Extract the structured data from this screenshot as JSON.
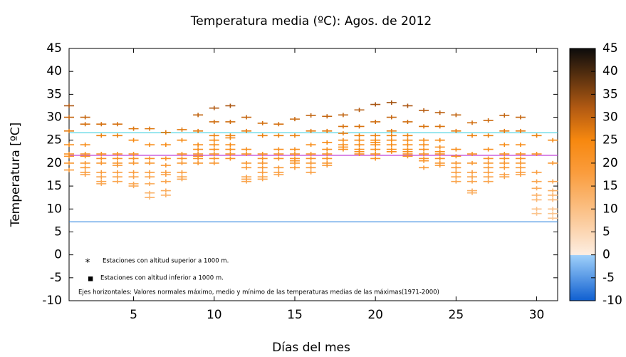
{
  "chart_data": {
    "type": "strip",
    "title": "Temperatura media (ºC): Agos. de 2012",
    "x_label": "Días del mes",
    "y_label": "Temperatura [ºC]",
    "xlim": [
      1,
      31.3
    ],
    "xticks": [
      5,
      10,
      15,
      20,
      25,
      30
    ],
    "ylim": [
      -10,
      45
    ],
    "yticks": [
      -10,
      -5,
      0,
      5,
      10,
      15,
      20,
      25,
      30,
      35,
      40,
      45
    ],
    "x": [
      1,
      2,
      3,
      4,
      5,
      6,
      7,
      8,
      9,
      10,
      11,
      12,
      13,
      14,
      15,
      16,
      17,
      18,
      19,
      20,
      21,
      22,
      23,
      24,
      25,
      26,
      27,
      28,
      29,
      30,
      31
    ],
    "values": [
      [
        32.5,
        30,
        27,
        24,
        22,
        21.5,
        20,
        18.5
      ],
      [
        30,
        28.5,
        24,
        22,
        21.5,
        20,
        19,
        18,
        17.5
      ],
      [
        28.5,
        26,
        22,
        21,
        20,
        18,
        17,
        16,
        15.5
      ],
      [
        28.5,
        26,
        22,
        21,
        20,
        19.5,
        18,
        17,
        16
      ],
      [
        27.5,
        25,
        22,
        21,
        20,
        18,
        17,
        15.5,
        15
      ],
      [
        27.5,
        24,
        21,
        20,
        18,
        17,
        15.5,
        13.5,
        12.5
      ],
      [
        26.7,
        24,
        21,
        19.5,
        18,
        17.5,
        16,
        14,
        13
      ],
      [
        27.3,
        25,
        22,
        21,
        20,
        18,
        17,
        16.5
      ],
      [
        30.5,
        27,
        24,
        23,
        22,
        21.5,
        21,
        20
      ],
      [
        32,
        29,
        26,
        25,
        24,
        23,
        22,
        21,
        20
      ],
      [
        32.5,
        29,
        26,
        25.5,
        24,
        23,
        22,
        21
      ],
      [
        30,
        27,
        23,
        22,
        20,
        19,
        17,
        16.5,
        16
      ],
      [
        28.7,
        26,
        22,
        21,
        20,
        19,
        18,
        17,
        16.5
      ],
      [
        28.5,
        26,
        23,
        22,
        21,
        19,
        18,
        17.5
      ],
      [
        29.6,
        26,
        23,
        22,
        21,
        20.5,
        20,
        19
      ],
      [
        30.4,
        27,
        24,
        22,
        21,
        20,
        19,
        18
      ],
      [
        30.2,
        27,
        24.5,
        23,
        22,
        21,
        20,
        19.5
      ],
      [
        30.5,
        28,
        26.5,
        25,
        24,
        23.5,
        23
      ],
      [
        31.6,
        28,
        26,
        25,
        24,
        23,
        22.5,
        22
      ],
      [
        32.8,
        29,
        26,
        25,
        24.5,
        24,
        23,
        22,
        21
      ],
      [
        33.2,
        30,
        27,
        26,
        25,
        24,
        23,
        22.5
      ],
      [
        32.5,
        29,
        26,
        25,
        24,
        23,
        22.5,
        22,
        21.5
      ],
      [
        31.5,
        28,
        25,
        24,
        23,
        22,
        21,
        20.5,
        19
      ],
      [
        31,
        28,
        25,
        23.5,
        22.5,
        22,
        21,
        20,
        19.5
      ],
      [
        30.5,
        27,
        23,
        21.5,
        20,
        19,
        18,
        17,
        16
      ],
      [
        28.8,
        26,
        22,
        20,
        18,
        17,
        16,
        14,
        13.5
      ],
      [
        29.3,
        26,
        23,
        21,
        20,
        19,
        18,
        17,
        16
      ],
      [
        30.4,
        27,
        24,
        22,
        21,
        20,
        19,
        17.5,
        17
      ],
      [
        30,
        27,
        24,
        22,
        21,
        20,
        19,
        18,
        17.5
      ],
      [
        26,
        22,
        18,
        16,
        14.5,
        13,
        12,
        10,
        9
      ],
      [
        25,
        20,
        16,
        14,
        13,
        12,
        10,
        9,
        8
      ]
    ],
    "hlines": [
      {
        "value": 26.6,
        "color": "#3ccfe0"
      },
      {
        "value": 21.7,
        "color": "#c040d8"
      },
      {
        "value": 7.2,
        "color": "#2f86e0"
      }
    ],
    "legend": [
      {
        "marker": "*",
        "text": "Estaciones con altitud superior a 1000 m."
      },
      {
        "marker": "■",
        "text": "Estaciones con altitud inferior a 1000 m."
      }
    ],
    "note": "Ejes horizontales: Valores normales máximo, medio y mínimo de las temperaturas medias de las máximas(1971-2000)",
    "colorbar": {
      "lim": [
        -10,
        45
      ],
      "ticks": [
        -10,
        -5,
        0,
        5,
        10,
        15,
        20,
        25,
        30,
        35,
        40,
        45
      ],
      "colormap": [
        {
          "value": -10,
          "color": "#0f5fd0"
        },
        {
          "value": -0.1,
          "color": "#9fd0fa"
        },
        {
          "value": 0,
          "color": "#fdeee2"
        },
        {
          "value": 8,
          "color": "#fbc896"
        },
        {
          "value": 18,
          "color": "#fa9c3c"
        },
        {
          "value": 25,
          "color": "#f7880f"
        },
        {
          "value": 32,
          "color": "#b25a12"
        },
        {
          "value": 45,
          "color": "#0c0c0c"
        }
      ]
    }
  }
}
